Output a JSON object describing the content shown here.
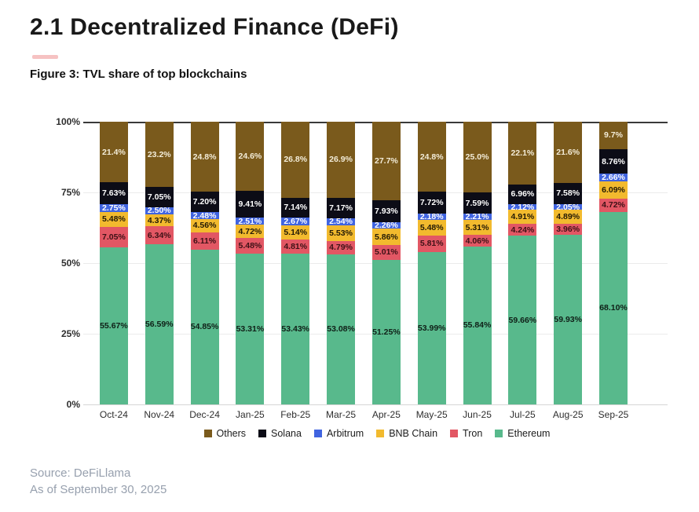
{
  "page": {
    "title": "2.1 Decentralized Finance (DeFi)",
    "figure_label": "Figure 3: TVL share of top blockchains",
    "source_line1": "Source: DeFiLlama",
    "source_line2": "As of September 30, 2025",
    "accent_underline_color": "#ef8f8f"
  },
  "chart_data": {
    "type": "bar",
    "stacked": true,
    "unit": "%",
    "title": "Figure 3: TVL share of top blockchains",
    "categories": [
      "Oct-24",
      "Nov-24",
      "Dec-24",
      "Jan-25",
      "Feb-25",
      "Mar-25",
      "Apr-25",
      "May-25",
      "Jun-25",
      "Jul-25",
      "Aug-25",
      "Sep-25"
    ],
    "y_ticks": [
      "100%",
      "75%",
      "50%",
      "25%",
      "0%"
    ],
    "ylim": [
      0,
      100
    ],
    "grid": "horizontal",
    "legend_position": "bottom",
    "series": [
      {
        "name": "Ethereum",
        "color": "#58b98c",
        "label_color": "#0f1f17",
        "values": [
          55.67,
          56.59,
          54.85,
          53.31,
          53.43,
          53.08,
          51.25,
          53.99,
          55.84,
          59.66,
          59.93,
          68.1
        ],
        "labels": [
          "55.67%",
          "56.59%",
          "54.85%",
          "53.31%",
          "53.43%",
          "53.08%",
          "51.25%",
          "53.99%",
          "55.84%",
          "59.66%",
          "59.93%",
          "68.10%"
        ]
      },
      {
        "name": "Tron",
        "color": "#e25764",
        "label_color": "#3d1116",
        "values": [
          7.05,
          6.34,
          6.11,
          5.48,
          4.81,
          4.79,
          5.01,
          5.81,
          4.06,
          4.24,
          3.96,
          4.72
        ],
        "labels": [
          "7.05%",
          "6.34%",
          "6.11%",
          "5.48%",
          "4.81%",
          "4.79%",
          "5.01%",
          "5.81%",
          "4.06%",
          "4.24%",
          "3.96%",
          "4.72%"
        ]
      },
      {
        "name": "BNB Chain",
        "color": "#f2ba2e",
        "label_color": "#221905",
        "values": [
          5.48,
          4.37,
          4.56,
          4.72,
          5.14,
          5.53,
          5.86,
          5.48,
          5.31,
          4.91,
          4.89,
          6.09
        ],
        "labels": [
          "5.48%",
          "4.37%",
          "4.56%",
          "4.72%",
          "5.14%",
          "5.53%",
          "5.86%",
          "5.48%",
          "5.31%",
          "4.91%",
          "4.89%",
          "6.09%"
        ]
      },
      {
        "name": "Arbitrum",
        "color": "#4064e0",
        "label_color": "#ffffff",
        "values": [
          2.75,
          2.5,
          2.48,
          2.51,
          2.67,
          2.54,
          2.26,
          2.18,
          2.21,
          2.12,
          2.05,
          2.66
        ],
        "labels": [
          "2.75%",
          "2.50%",
          "2.48%",
          "2.51%",
          "2.67%",
          "2.54%",
          "2.26%",
          "2.18%",
          "2.21%",
          "2.12%",
          "2.05%",
          "2.66%"
        ]
      },
      {
        "name": "Solana",
        "color": "#0c0c16",
        "label_color": "#ffffff",
        "values": [
          7.63,
          7.05,
          7.2,
          9.41,
          7.14,
          7.17,
          7.93,
          7.72,
          7.59,
          6.96,
          7.58,
          8.76
        ],
        "labels": [
          "7.63%",
          "7.05%",
          "7.20%",
          "9.41%",
          "7.14%",
          "7.17%",
          "7.93%",
          "7.72%",
          "7.59%",
          "6.96%",
          "7.58%",
          "8.76%"
        ]
      },
      {
        "name": "Others",
        "color": "#7a5a1c",
        "label_color": "#f3ecd8",
        "values": [
          21.4,
          23.2,
          24.8,
          24.6,
          26.8,
          26.9,
          27.7,
          24.8,
          25.0,
          22.1,
          21.6,
          9.7
        ],
        "labels": [
          "21.4%",
          "23.2%",
          "24.8%",
          "24.6%",
          "26.8%",
          "26.9%",
          "27.7%",
          "24.8%",
          "25.0%",
          "22.1%",
          "21.6%",
          "9.7%"
        ]
      }
    ],
    "legend_order": [
      "Others",
      "Solana",
      "Arbitrum",
      "BNB Chain",
      "Tron",
      "Ethereum"
    ]
  }
}
